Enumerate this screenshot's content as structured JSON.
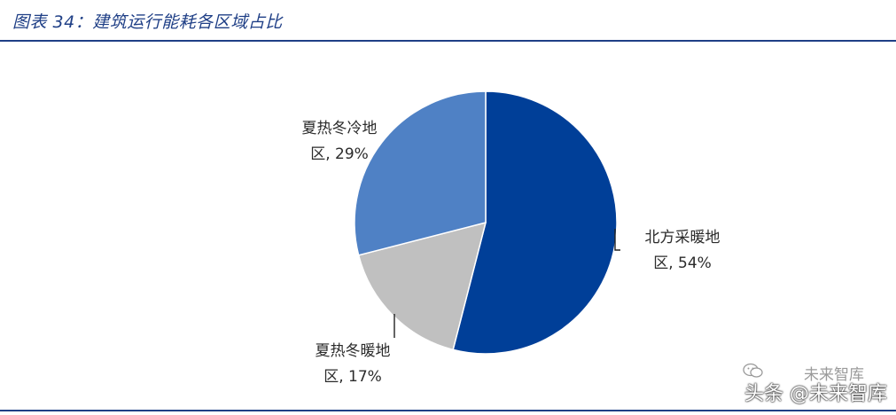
{
  "header": {
    "figure_title": "图表 34：建筑运行能耗各区域占比"
  },
  "chart_data": {
    "type": "pie",
    "title": "",
    "slices": [
      {
        "label_line1": "北方采暖地",
        "label_line2": "区, 54%",
        "value": 54,
        "color": "#003f98"
      },
      {
        "label_line1": "夏热冬暖地",
        "label_line2": "区, 17%",
        "value": 17,
        "color": "#c0c0c0"
      },
      {
        "label_line1": "夏热冬冷地",
        "label_line2": "区, 29%",
        "value": 29,
        "color": "#4f81c5"
      }
    ],
    "start_angle_deg": 0,
    "direction": "clockwise"
  },
  "watermark": {
    "brand_faint": "未来智库",
    "brand_main": "头条 @未来智库",
    "icon": "wechat-icon"
  }
}
